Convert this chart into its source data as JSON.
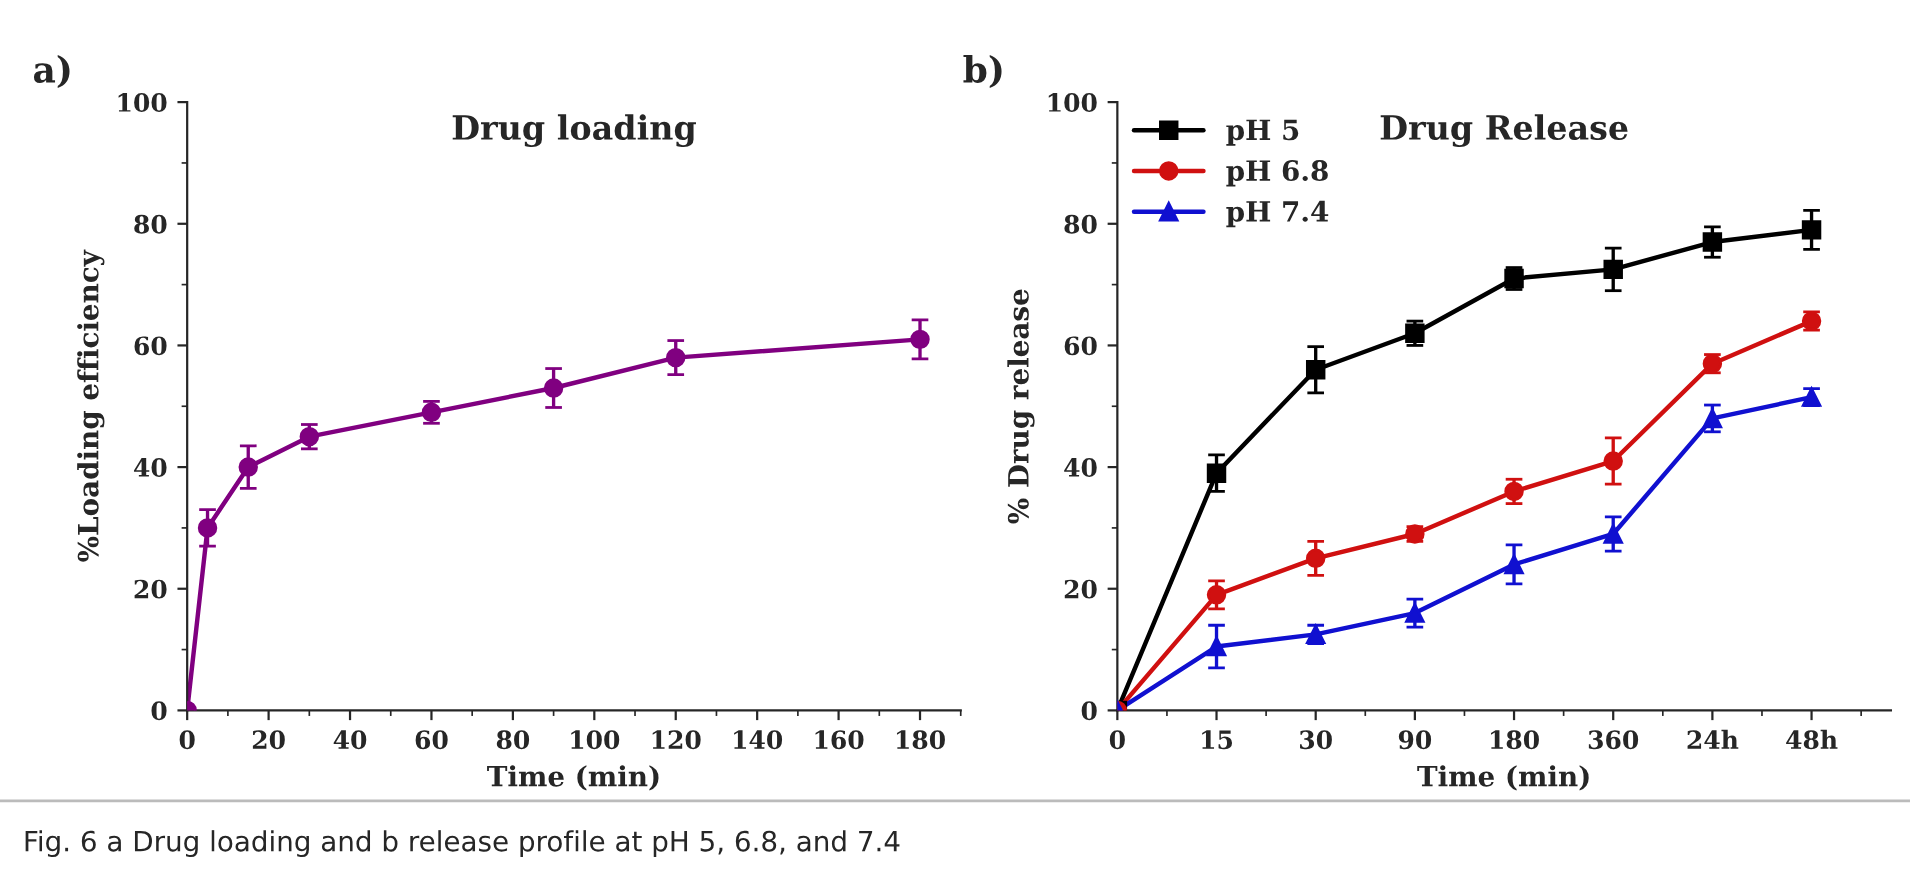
{
  "chart_data": [
    {
      "type": "line",
      "title": "Drug loading",
      "xlabel": "Time (min)",
      "ylabel": "%Loading efficiency",
      "x": [
        0,
        5,
        15,
        30,
        60,
        90,
        120,
        180
      ],
      "series": [
        {
          "color": "#800080",
          "marker": "circle",
          "values": [
            0,
            30,
            40,
            45,
            49,
            53,
            58,
            61
          ],
          "errors": [
            null,
            3,
            3.5,
            2,
            1.8,
            3.2,
            2.8,
            3.2
          ]
        }
      ],
      "xlim": [
        0,
        190
      ],
      "xticks": [
        0,
        20,
        40,
        60,
        80,
        100,
        120,
        140,
        160,
        180
      ],
      "ylim": [
        0,
        100
      ],
      "yticks": [
        0,
        20,
        40,
        60,
        80,
        100
      ],
      "grid": false,
      "legend": false,
      "line_style": "solid",
      "annotations": [
        "a)",
        "Fig. 6 a Drug loading and b release profile at pH 5, 6.8, and 7.4"
      ]
    },
    {
      "type": "line",
      "title": "Drug Release",
      "xlabel": "Time (min)",
      "ylabel": "% Drug release",
      "categories": [
        "0",
        "15",
        "30",
        "90",
        "180",
        "360",
        "24h",
        "48h"
      ],
      "series": [
        {
          "name": "pH 5",
          "color": "#000000",
          "marker": "square",
          "values": [
            0,
            39,
            56,
            62,
            71,
            72.5,
            77,
            79
          ],
          "errors": [
            null,
            3,
            3.8,
            2,
            1.8,
            3.5,
            2.5,
            3.2
          ]
        },
        {
          "name": "pH 6.8",
          "color": "#d01010",
          "marker": "circle",
          "values": [
            0,
            19,
            25,
            29,
            36,
            41,
            57,
            64
          ],
          "errors": [
            null,
            2.3,
            2.8,
            1.2,
            2,
            3.8,
            1.5,
            1.5
          ]
        },
        {
          "name": "pH 7.4",
          "color": "#1010d0",
          "marker": "triangle",
          "values": [
            0,
            10.5,
            12.5,
            16,
            24,
            29,
            48,
            51.5
          ],
          "errors": [
            null,
            3.5,
            1.5,
            2.3,
            3.2,
            2.8,
            2.2,
            1.4
          ]
        }
      ],
      "ylim": [
        0,
        100
      ],
      "yticks": [
        0,
        20,
        40,
        60,
        80,
        100
      ],
      "grid": false,
      "legend": "top left",
      "line_style": "solid",
      "annotations": [
        "b)"
      ]
    }
  ]
}
